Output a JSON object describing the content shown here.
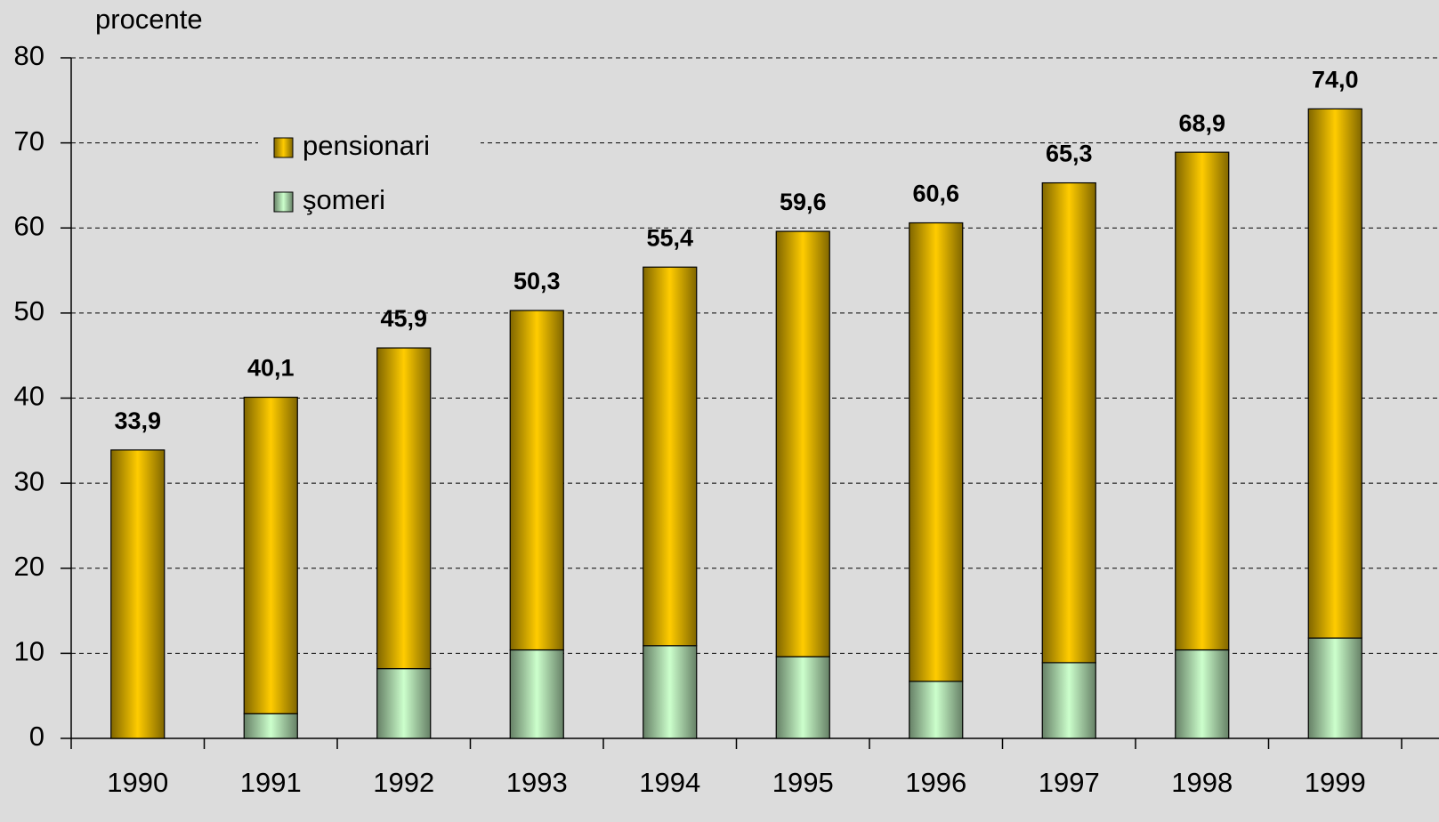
{
  "chart_data": {
    "type": "stacked_bar",
    "y_label": "procente",
    "categories": [
      "1990",
      "1991",
      "1992",
      "1993",
      "1994",
      "1995",
      "1996",
      "1997",
      "1998",
      "1999"
    ],
    "series": [
      {
        "name": "şomeri",
        "color": "#ccffcc",
        "values": [
          0,
          2.9,
          8.2,
          10.4,
          10.9,
          9.6,
          6.7,
          8.9,
          10.4,
          11.8
        ]
      },
      {
        "name": "pensionari",
        "color": "#ffcc00",
        "values": [
          33.9,
          37.2,
          37.7,
          39.9,
          44.5,
          50.0,
          53.9,
          56.4,
          58.5,
          62.2
        ]
      }
    ],
    "total_labels": [
      "33,9",
      "40,1",
      "45,9",
      "50,3",
      "55,4",
      "59,6",
      "60,6",
      "65,3",
      "68,9",
      "74,0"
    ],
    "ylim": [
      0,
      80
    ],
    "yticks": [
      0,
      10,
      20,
      30,
      40,
      50,
      60,
      70,
      80
    ],
    "grid": true
  }
}
